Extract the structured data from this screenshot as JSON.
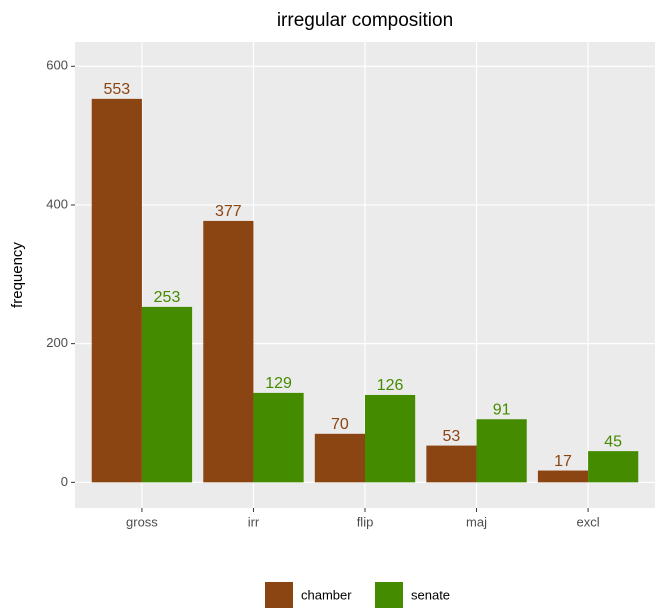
{
  "chart_data": {
    "type": "bar",
    "title": "irregular composition",
    "y_label": "frequency",
    "categories": [
      "gross",
      "irr",
      "flip",
      "maj",
      "excl"
    ],
    "series": [
      {
        "name": "chamber",
        "color": "#8B4513",
        "values": [
          553,
          377,
          70,
          53,
          17
        ]
      },
      {
        "name": "senate",
        "color": "#458B00",
        "values": [
          253,
          129,
          126,
          91,
          45
        ]
      }
    ],
    "ylim": [
      -37,
      635
    ],
    "yticks": [
      0,
      200,
      400,
      600
    ],
    "grid": true,
    "legend": "bottom"
  }
}
